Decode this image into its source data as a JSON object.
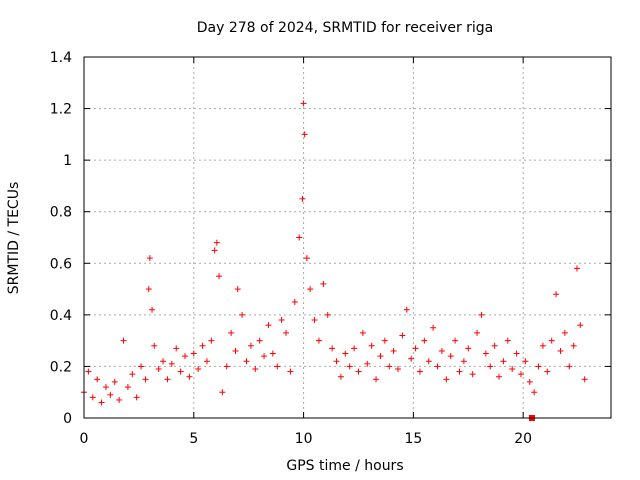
{
  "chart_data": {
    "type": "scatter",
    "title": "Day 278 of 2024, SRMTID for receiver riga",
    "xlabel": "GPS time / hours",
    "ylabel": "SRMTID / TECUs",
    "xlim": [
      0,
      24
    ],
    "ylim": [
      0,
      1.4
    ],
    "x_ticks": [
      0,
      5,
      10,
      15,
      20
    ],
    "x_tick_labels": [
      "0",
      "5",
      "10",
      "15",
      "20"
    ],
    "y_ticks": [
      0,
      0.2,
      0.4,
      0.6,
      0.8,
      1.0,
      1.2,
      1.4
    ],
    "y_tick_labels": [
      "0",
      "0.2",
      "0.4",
      "0.6",
      "0.8",
      "1",
      "1.2",
      "1.4"
    ],
    "grid": true,
    "marker": "+",
    "marker_color": "#ff0000",
    "series": [
      {
        "name": "SRMTID",
        "x": [
          0.0,
          0.2,
          0.4,
          0.6,
          0.8,
          1.0,
          1.2,
          1.4,
          1.6,
          1.8,
          2.0,
          2.2,
          2.4,
          2.6,
          2.8,
          2.95,
          3.0,
          3.1,
          3.2,
          3.4,
          3.6,
          3.8,
          4.0,
          4.2,
          4.4,
          4.6,
          4.8,
          5.0,
          5.2,
          5.4,
          5.6,
          5.8,
          5.95,
          6.05,
          6.15,
          6.3,
          6.5,
          6.7,
          6.9,
          7.0,
          7.2,
          7.4,
          7.6,
          7.8,
          8.0,
          8.2,
          8.4,
          8.6,
          8.8,
          9.0,
          9.2,
          9.4,
          9.6,
          9.8,
          9.95,
          10.0,
          10.05,
          10.15,
          10.3,
          10.5,
          10.7,
          10.9,
          11.1,
          11.3,
          11.5,
          11.7,
          11.9,
          12.1,
          12.3,
          12.5,
          12.7,
          12.9,
          13.1,
          13.3,
          13.5,
          13.7,
          13.9,
          14.1,
          14.3,
          14.5,
          14.7,
          14.9,
          15.1,
          15.3,
          15.5,
          15.7,
          15.9,
          16.1,
          16.3,
          16.5,
          16.7,
          16.9,
          17.1,
          17.3,
          17.5,
          17.7,
          17.9,
          18.1,
          18.3,
          18.5,
          18.7,
          18.9,
          19.1,
          19.3,
          19.5,
          19.7,
          19.9,
          20.1,
          20.3,
          20.5,
          20.7,
          20.9,
          21.1,
          21.3,
          21.5,
          21.7,
          21.9,
          22.1,
          22.3,
          22.45,
          22.6,
          22.8
        ],
        "y": [
          0.1,
          0.18,
          0.08,
          0.15,
          0.06,
          0.12,
          0.09,
          0.14,
          0.07,
          0.3,
          0.12,
          0.17,
          0.08,
          0.2,
          0.15,
          0.5,
          0.62,
          0.42,
          0.28,
          0.19,
          0.22,
          0.15,
          0.21,
          0.27,
          0.18,
          0.24,
          0.16,
          0.25,
          0.19,
          0.28,
          0.22,
          0.3,
          0.65,
          0.68,
          0.55,
          0.1,
          0.2,
          0.33,
          0.26,
          0.5,
          0.4,
          0.22,
          0.28,
          0.19,
          0.3,
          0.24,
          0.36,
          0.25,
          0.2,
          0.38,
          0.33,
          0.18,
          0.45,
          0.7,
          0.85,
          1.22,
          1.1,
          0.62,
          0.5,
          0.38,
          0.3,
          0.52,
          0.4,
          0.27,
          0.22,
          0.16,
          0.25,
          0.2,
          0.27,
          0.18,
          0.33,
          0.21,
          0.28,
          0.15,
          0.24,
          0.3,
          0.2,
          0.26,
          0.19,
          0.32,
          0.42,
          0.23,
          0.27,
          0.18,
          0.3,
          0.22,
          0.35,
          0.2,
          0.26,
          0.15,
          0.24,
          0.3,
          0.18,
          0.22,
          0.27,
          0.17,
          0.33,
          0.4,
          0.25,
          0.2,
          0.28,
          0.16,
          0.22,
          0.3,
          0.19,
          0.25,
          0.17,
          0.22,
          0.14,
          0.1,
          0.2,
          0.28,
          0.18,
          0.3,
          0.48,
          0.26,
          0.33,
          0.2,
          0.28,
          0.58,
          0.36,
          0.15
        ]
      }
    ],
    "special_marker": {
      "x": 20.4,
      "y": 0.0,
      "shape": "square"
    }
  }
}
